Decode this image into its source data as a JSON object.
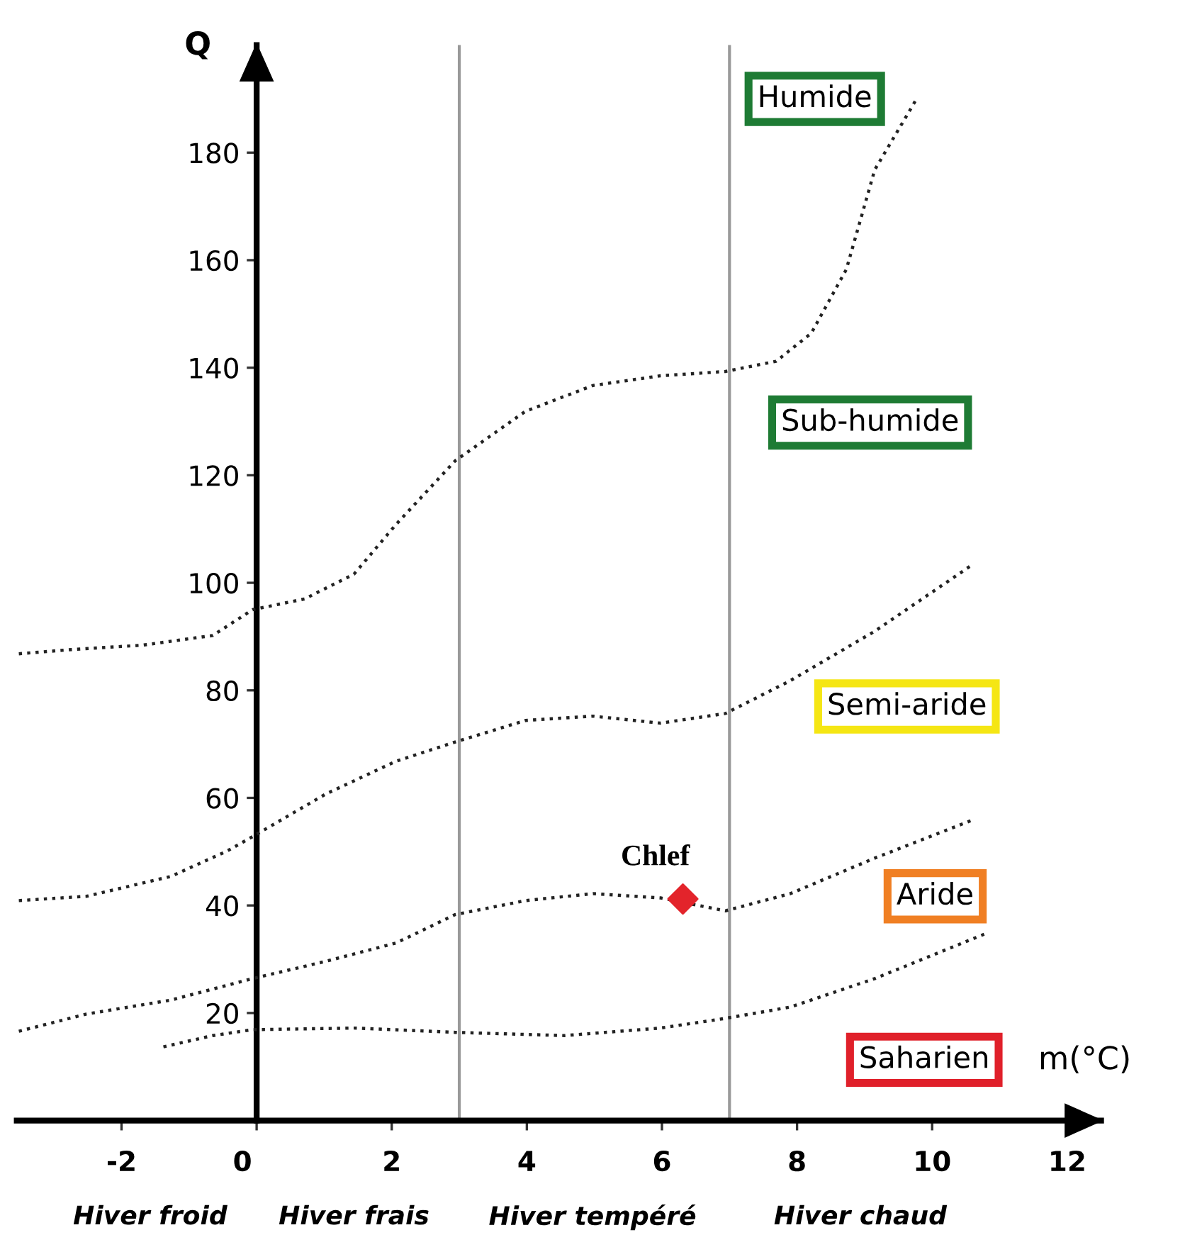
{
  "chart_data": {
    "type": "line",
    "xlabel": "m(°C)",
    "ylabel": "Q",
    "xlim": [
      -3.55,
      12.5
    ],
    "ylim": [
      0,
      200
    ],
    "xticks": [
      -2,
      0,
      2,
      4,
      6,
      8,
      10,
      12
    ],
    "yticks": [
      20,
      40,
      60,
      80,
      100,
      120,
      140,
      160,
      180
    ],
    "grid": false,
    "legend": false,
    "line_style": "dotted",
    "marker": "none",
    "series": [
      {
        "color": "#222222",
        "x": [
          -3.52,
          -2.73,
          -1.69,
          -0.65,
          -0.06,
          0.71,
          1.44,
          2.06,
          2.94,
          3.98,
          4.98,
          5.98,
          6.94,
          7.69,
          8.21,
          8.73,
          9.15,
          9.77
        ],
        "values": [
          86.8,
          87.6,
          88.4,
          90.2,
          95,
          97,
          101.6,
          110.8,
          122.7,
          131.9,
          136.7,
          138.5,
          139.3,
          141.2,
          146.4,
          158.3,
          176.8,
          190
        ]
      },
      {
        "color": "#222222",
        "x": [
          -3.52,
          -2.52,
          -1.27,
          -0.44,
          -0.06,
          1.02,
          2.06,
          2.94,
          3.98,
          4.98,
          5.98,
          6.94,
          7.9,
          9.15,
          10.6
        ],
        "values": [
          40.9,
          41.7,
          45.4,
          50.1,
          52.8,
          60.7,
          66.8,
          70.4,
          74.4,
          75.2,
          73.9,
          75.7,
          81.8,
          91,
          103.4
        ]
      },
      {
        "color": "#222222",
        "x": [
          -3.52,
          -2.52,
          -1.27,
          -0.06,
          1.02,
          2.06,
          2.94,
          3.98,
          4.98,
          5.98,
          6.94,
          7.9,
          9.15,
          10.6
        ],
        "values": [
          16.6,
          19.8,
          22.4,
          26.4,
          29.6,
          33,
          38.3,
          40.9,
          42.2,
          41.4,
          39,
          42.2,
          48.8,
          55.9
        ]
      },
      {
        "color": "#222222",
        "x": [
          -1.38,
          -0.65,
          -0.06,
          1.44,
          2.94,
          4.56,
          5.98,
          6.94,
          7.9,
          9.15,
          10.8
        ],
        "values": [
          13.7,
          15.8,
          16.9,
          17.2,
          16.4,
          15.8,
          17.2,
          19,
          21.1,
          26.4,
          34.8
        ]
      },
      {
        "type": "scatter",
        "name": "Chlef",
        "color": "#e3242b",
        "marker": "diamond",
        "x": [
          6.31
        ],
        "values": [
          41.2
        ]
      }
    ],
    "ref_lines": [
      {
        "axis": "x",
        "value": 3,
        "color": "#999999"
      },
      {
        "axis": "x",
        "value": 7,
        "color": "#999999"
      }
    ],
    "annotations": [
      "Humide",
      "Sub-humide",
      "Semi-aride",
      "Aride",
      "Saharien",
      "Hiver froid",
      "Hiver frais",
      "Hiver tempéré",
      "Hiver chaud"
    ]
  }
}
